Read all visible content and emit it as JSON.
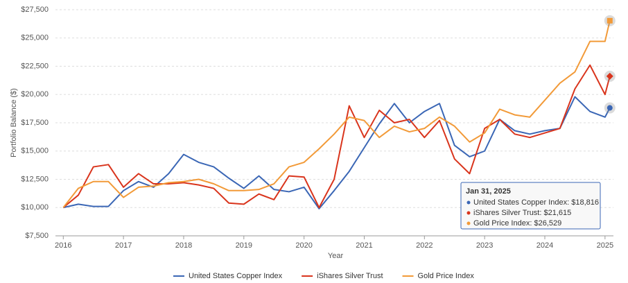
{
  "chart_data": {
    "type": "line",
    "x_label": "Year",
    "y_label": "Portfolio Balance ($)",
    "grid": true,
    "xlim": [
      2015.87,
      2025.14
    ],
    "xticks": [
      2016,
      2017,
      2018,
      2019,
      2020,
      2021,
      2022,
      2023,
      2024,
      2025
    ],
    "ylim": [
      7500,
      27500
    ],
    "yticks": [
      {
        "value": 7500,
        "label": "$7,500"
      },
      {
        "value": 10000,
        "label": "$10,000"
      },
      {
        "value": 12500,
        "label": "$12,500"
      },
      {
        "value": 15000,
        "label": "$15,000"
      },
      {
        "value": 17500,
        "label": "$17,500"
      },
      {
        "value": 20000,
        "label": "$20,000"
      },
      {
        "value": 22500,
        "label": "$22,500"
      },
      {
        "value": 25000,
        "label": "$25,000"
      },
      {
        "value": 27500,
        "label": "$27,500"
      }
    ],
    "x": [
      2016,
      2016.25,
      2016.5,
      2016.75,
      2017,
      2017.25,
      2017.5,
      2017.75,
      2018,
      2018.25,
      2018.5,
      2018.75,
      2019,
      2019.25,
      2019.5,
      2019.75,
      2020,
      2020.25,
      2020.5,
      2020.75,
      2021,
      2021.25,
      2021.5,
      2021.75,
      2022,
      2022.25,
      2022.5,
      2022.75,
      2023,
      2023.25,
      2023.5,
      2023.75,
      2024,
      2024.25,
      2024.5,
      2024.75,
      2025,
      2025.08
    ],
    "tooltip_date": "Jan 31, 2025",
    "series": [
      {
        "name": "United States Copper Index",
        "color": "#3a66b5",
        "marker": "circle",
        "values": [
          10000,
          10300,
          10100,
          10100,
          11500,
          12300,
          11800,
          13000,
          14700,
          14000,
          13600,
          12600,
          11700,
          12800,
          11600,
          11400,
          11800,
          9900,
          11500,
          13200,
          15300,
          17400,
          19200,
          17500,
          18500,
          19200,
          15500,
          14500,
          15000,
          17800,
          16800,
          16500,
          16800,
          17000,
          19800,
          18500,
          18000,
          18816
        ],
        "value_labels": [
          null,
          null,
          null,
          null,
          null,
          null,
          null,
          null,
          null,
          null,
          null,
          null,
          null,
          null,
          null,
          null,
          null,
          null,
          null,
          null,
          null,
          null,
          null,
          null,
          null,
          null,
          null,
          null,
          null,
          null,
          null,
          null,
          null,
          null,
          null,
          null,
          null,
          "$18,816"
        ]
      },
      {
        "name": "iShares Silver Trust",
        "color": "#d9341c",
        "marker": "diamond",
        "values": [
          10000,
          11100,
          13600,
          13800,
          11800,
          13000,
          12100,
          12100,
          12200,
          12000,
          11700,
          10400,
          10300,
          11200,
          10700,
          12800,
          12700,
          10000,
          12500,
          19000,
          16200,
          18600,
          17500,
          17800,
          16200,
          17700,
          14300,
          13000,
          17000,
          17800,
          16500,
          16200,
          16600,
          17000,
          20500,
          22600,
          20000,
          21615
        ],
        "value_labels": [
          null,
          null,
          null,
          null,
          null,
          null,
          null,
          null,
          null,
          null,
          null,
          null,
          null,
          null,
          null,
          null,
          null,
          null,
          null,
          null,
          null,
          null,
          null,
          null,
          null,
          null,
          null,
          null,
          null,
          null,
          null,
          null,
          null,
          null,
          null,
          null,
          null,
          "$21,615"
        ]
      },
      {
        "name": "Gold Price Index",
        "color": "#f29a38",
        "marker": "square",
        "values": [
          10000,
          11700,
          12300,
          12300,
          10900,
          11800,
          11900,
          12200,
          12300,
          12500,
          12100,
          11500,
          11500,
          11600,
          12100,
          13600,
          14000,
          15200,
          16500,
          18000,
          17700,
          16200,
          17200,
          16700,
          17000,
          18000,
          17200,
          15800,
          16600,
          18700,
          18200,
          18000,
          19500,
          21000,
          22000,
          24700,
          24700,
          26529
        ],
        "value_labels": [
          null,
          null,
          null,
          null,
          null,
          null,
          null,
          null,
          null,
          null,
          null,
          null,
          null,
          null,
          null,
          null,
          null,
          null,
          null,
          null,
          null,
          null,
          null,
          null,
          null,
          null,
          null,
          null,
          null,
          null,
          null,
          null,
          null,
          null,
          null,
          null,
          null,
          "$26,529"
        ]
      }
    ]
  }
}
